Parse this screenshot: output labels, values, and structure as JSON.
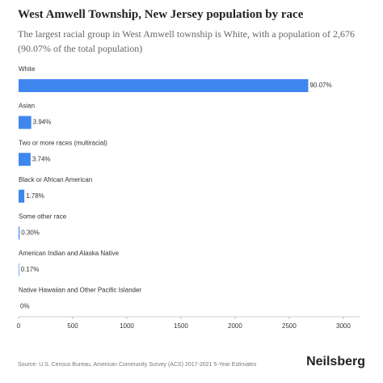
{
  "chart_data": {
    "type": "bar",
    "orientation": "horizontal",
    "title": "West Amwell Township, New Jersey population by race",
    "subtitle": "The largest racial group in West Amwell township is White, with a population of 2,676 (90.07% of the total population)",
    "categories": [
      "White",
      "Asian",
      "Two or more races (multiracial)",
      "Black or African American",
      "Some other race",
      "American Indian and Alaska Native",
      "Native Hawaiian and Other Pacific Islander"
    ],
    "values": [
      2676,
      117,
      111,
      53,
      9,
      5,
      0
    ],
    "value_labels": [
      "90.07%",
      "3.94%",
      "3.74%",
      "1.78%",
      "0.30%",
      "0.17%",
      "0%"
    ],
    "color": "#3f87ef",
    "xlim": [
      0,
      3150
    ],
    "xticks": [
      0,
      500,
      1000,
      1500,
      2000,
      2500,
      3000
    ],
    "source": "Source: U.S. Census Bureau, American Community Survey (ACS) 2017-2021 5-Year Estimates",
    "brand": "Neilsberg"
  }
}
